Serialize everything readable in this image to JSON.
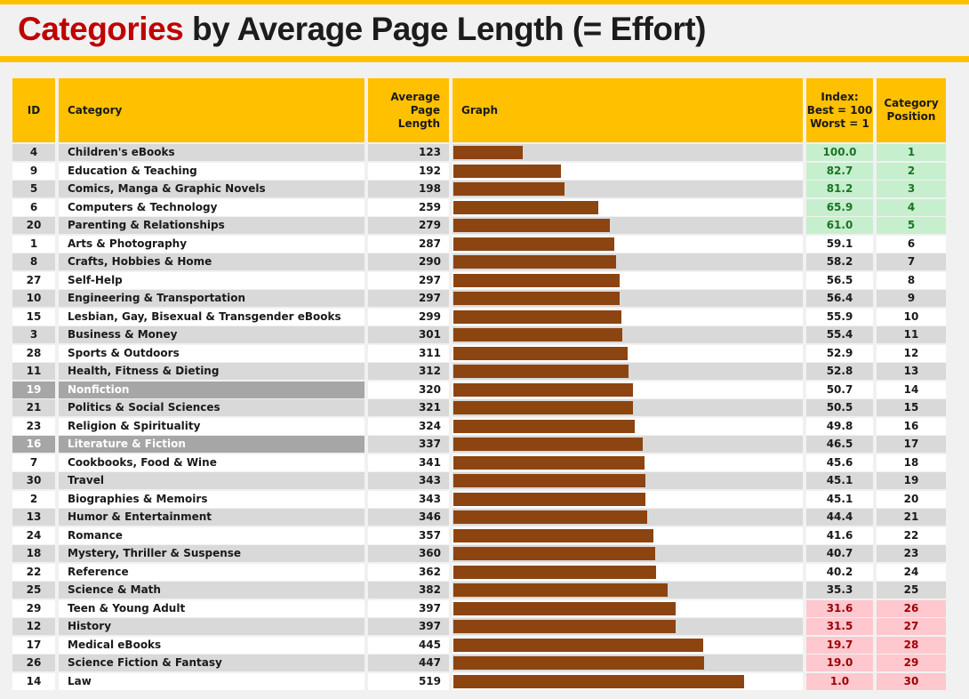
{
  "title": {
    "highlight": "Categories",
    "rest": " by Average Page Length (= Effort)"
  },
  "colors": {
    "accent_gold": "#FFC000",
    "title_red": "#C00000",
    "bar_brown": "#8C4411",
    "row_gray": "#D9D9D9",
    "highlight_gray": "#A6A6A6",
    "good_bg": "#C6EFCE",
    "good_text": "#1D7324",
    "bad_bg": "#FFC7CE",
    "bad_text": "#9C0006"
  },
  "table": {
    "headers": {
      "id": "ID",
      "category": "Category",
      "avg_page_length": "Average\nPage\nLength",
      "graph": "Graph",
      "index": "Index:\nBest = 100\nWorst = 1",
      "position": "Category\nPosition"
    },
    "rows": [
      {
        "id": 4,
        "category": "Children's eBooks",
        "pages": 123,
        "index": "100.0",
        "position": 1,
        "band": "top",
        "highlight": false
      },
      {
        "id": 9,
        "category": "Education & Teaching",
        "pages": 192,
        "index": "82.7",
        "position": 2,
        "band": "top",
        "highlight": false
      },
      {
        "id": 5,
        "category": "Comics, Manga & Graphic Novels",
        "pages": 198,
        "index": "81.2",
        "position": 3,
        "band": "top",
        "highlight": false
      },
      {
        "id": 6,
        "category": "Computers & Technology",
        "pages": 259,
        "index": "65.9",
        "position": 4,
        "band": "top",
        "highlight": false
      },
      {
        "id": 20,
        "category": "Parenting & Relationships",
        "pages": 279,
        "index": "61.0",
        "position": 5,
        "band": "top",
        "highlight": false
      },
      {
        "id": 1,
        "category": "Arts & Photography",
        "pages": 287,
        "index": "59.1",
        "position": 6,
        "band": "mid",
        "highlight": false
      },
      {
        "id": 8,
        "category": "Crafts, Hobbies & Home",
        "pages": 290,
        "index": "58.2",
        "position": 7,
        "band": "mid",
        "highlight": false
      },
      {
        "id": 27,
        "category": "Self-Help",
        "pages": 297,
        "index": "56.5",
        "position": 8,
        "band": "mid",
        "highlight": false
      },
      {
        "id": 10,
        "category": "Engineering & Transportation",
        "pages": 297,
        "index": "56.4",
        "position": 9,
        "band": "mid",
        "highlight": false
      },
      {
        "id": 15,
        "category": "Lesbian, Gay, Bisexual & Transgender eBooks",
        "pages": 299,
        "index": "55.9",
        "position": 10,
        "band": "mid",
        "highlight": false
      },
      {
        "id": 3,
        "category": "Business & Money",
        "pages": 301,
        "index": "55.4",
        "position": 11,
        "band": "mid",
        "highlight": false
      },
      {
        "id": 28,
        "category": "Sports & Outdoors",
        "pages": 311,
        "index": "52.9",
        "position": 12,
        "band": "mid",
        "highlight": false
      },
      {
        "id": 11,
        "category": "Health, Fitness & Dieting",
        "pages": 312,
        "index": "52.8",
        "position": 13,
        "band": "mid",
        "highlight": false
      },
      {
        "id": 19,
        "category": "Nonfiction",
        "pages": 320,
        "index": "50.7",
        "position": 14,
        "band": "mid",
        "highlight": true
      },
      {
        "id": 21,
        "category": "Politics & Social Sciences",
        "pages": 321,
        "index": "50.5",
        "position": 15,
        "band": "mid",
        "highlight": false
      },
      {
        "id": 23,
        "category": "Religion & Spirituality",
        "pages": 324,
        "index": "49.8",
        "position": 16,
        "band": "mid",
        "highlight": false
      },
      {
        "id": 16,
        "category": "Literature & Fiction",
        "pages": 337,
        "index": "46.5",
        "position": 17,
        "band": "mid",
        "highlight": true
      },
      {
        "id": 7,
        "category": "Cookbooks, Food & Wine",
        "pages": 341,
        "index": "45.6",
        "position": 18,
        "band": "mid",
        "highlight": false
      },
      {
        "id": 30,
        "category": "Travel",
        "pages": 343,
        "index": "45.1",
        "position": 19,
        "band": "mid",
        "highlight": false
      },
      {
        "id": 2,
        "category": "Biographies & Memoirs",
        "pages": 343,
        "index": "45.1",
        "position": 20,
        "band": "mid",
        "highlight": false
      },
      {
        "id": 13,
        "category": "Humor & Entertainment",
        "pages": 346,
        "index": "44.4",
        "position": 21,
        "band": "mid",
        "highlight": false
      },
      {
        "id": 24,
        "category": "Romance",
        "pages": 357,
        "index": "41.6",
        "position": 22,
        "band": "mid",
        "highlight": false
      },
      {
        "id": 18,
        "category": "Mystery, Thriller & Suspense",
        "pages": 360,
        "index": "40.7",
        "position": 23,
        "band": "mid",
        "highlight": false
      },
      {
        "id": 22,
        "category": "Reference",
        "pages": 362,
        "index": "40.2",
        "position": 24,
        "band": "mid",
        "highlight": false
      },
      {
        "id": 25,
        "category": "Science & Math",
        "pages": 382,
        "index": "35.3",
        "position": 25,
        "band": "mid",
        "highlight": false
      },
      {
        "id": 29,
        "category": "Teen & Young Adult",
        "pages": 397,
        "index": "31.6",
        "position": 26,
        "band": "bottom",
        "highlight": false
      },
      {
        "id": 12,
        "category": "History",
        "pages": 397,
        "index": "31.5",
        "position": 27,
        "band": "bottom",
        "highlight": false
      },
      {
        "id": 17,
        "category": "Medical eBooks",
        "pages": 445,
        "index": "19.7",
        "position": 28,
        "band": "bottom",
        "highlight": false
      },
      {
        "id": 26,
        "category": "Science Fiction & Fantasy",
        "pages": 447,
        "index": "19.0",
        "position": 29,
        "band": "bottom",
        "highlight": false
      },
      {
        "id": 14,
        "category": "Law",
        "pages": 519,
        "index": "1.0",
        "position": 30,
        "band": "bottom",
        "highlight": false
      }
    ]
  },
  "chart_data": {
    "type": "bar",
    "orientation": "horizontal",
    "title": "Categories by Average Page Length (= Effort)",
    "categories": [
      "Children's eBooks",
      "Education & Teaching",
      "Comics, Manga & Graphic Novels",
      "Computers & Technology",
      "Parenting & Relationships",
      "Arts & Photography",
      "Crafts, Hobbies & Home",
      "Self-Help",
      "Engineering & Transportation",
      "Lesbian, Gay, Bisexual & Transgender eBooks",
      "Business & Money",
      "Sports & Outdoors",
      "Health, Fitness & Dieting",
      "Nonfiction",
      "Politics & Social Sciences",
      "Religion & Spirituality",
      "Literature & Fiction",
      "Cookbooks, Food & Wine",
      "Travel",
      "Biographies & Memoirs",
      "Humor & Entertainment",
      "Romance",
      "Mystery, Thriller & Suspense",
      "Reference",
      "Science & Math",
      "Teen & Young Adult",
      "History",
      "Medical eBooks",
      "Science Fiction & Fantasy",
      "Law"
    ],
    "series": [
      {
        "name": "Average Page Length",
        "values": [
          123,
          192,
          198,
          259,
          279,
          287,
          290,
          297,
          297,
          299,
          301,
          311,
          312,
          320,
          321,
          324,
          337,
          341,
          343,
          343,
          346,
          357,
          360,
          362,
          382,
          397,
          397,
          445,
          447,
          519
        ]
      },
      {
        "name": "Index: Best = 100 Worst = 1",
        "values": [
          100.0,
          82.7,
          81.2,
          65.9,
          61.0,
          59.1,
          58.2,
          56.5,
          56.4,
          55.9,
          55.4,
          52.9,
          52.8,
          50.7,
          50.5,
          49.8,
          46.5,
          45.6,
          45.1,
          45.1,
          44.4,
          41.6,
          40.7,
          40.2,
          35.3,
          31.6,
          31.5,
          19.7,
          19.0,
          1.0
        ]
      },
      {
        "name": "Category Position",
        "values": [
          1,
          2,
          3,
          4,
          5,
          6,
          7,
          8,
          9,
          10,
          11,
          12,
          13,
          14,
          15,
          16,
          17,
          18,
          19,
          20,
          21,
          22,
          23,
          24,
          25,
          26,
          27,
          28,
          29,
          30
        ]
      }
    ],
    "xlim": [
      0,
      625
    ],
    "grid": false,
    "legend": false
  }
}
